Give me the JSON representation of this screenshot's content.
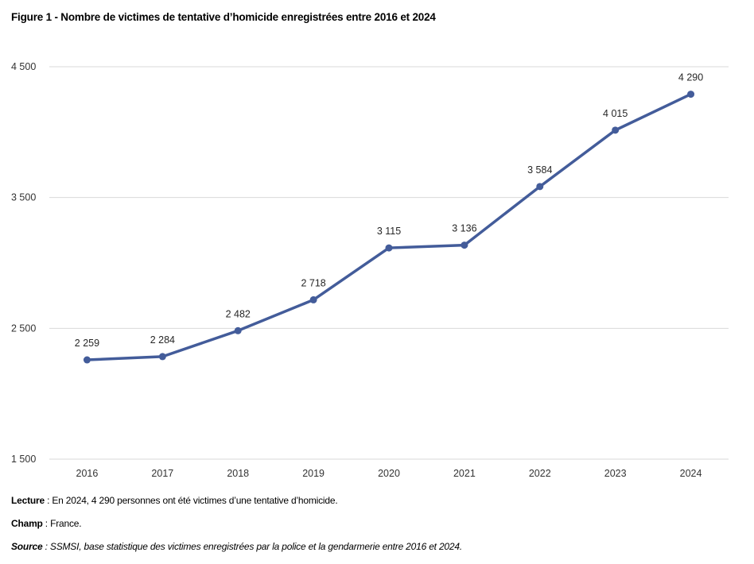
{
  "figure": {
    "title": "Figure 1 - Nombre de victimes de tentative d’homicide enregistrées entre 2016 et 2024"
  },
  "chart_data": {
    "type": "line",
    "title": "Figure 1 - Nombre de victimes de tentative d’homicide enregistrées entre 2016 et 2024",
    "categories": [
      "2016",
      "2017",
      "2018",
      "2019",
      "2020",
      "2021",
      "2022",
      "2023",
      "2024"
    ],
    "series": [
      {
        "values": [
          2259,
          2284,
          2482,
          2718,
          3115,
          3136,
          3584,
          4015,
          4290
        ],
        "color": "#435C9A"
      }
    ],
    "data_labels": [
      "2 259",
      "2 284",
      "2 482",
      "2 718",
      "3 115",
      "3 136",
      "3 584",
      "4 015",
      "4 290"
    ],
    "ylim": [
      1500,
      4500
    ],
    "yticks": [
      1500,
      2500,
      3500,
      4500
    ],
    "ytick_labels": [
      "1 500",
      "2 500",
      "3 500",
      "4 500"
    ],
    "grid": true,
    "legend": "none",
    "xlabel": "",
    "ylabel": ""
  },
  "notes": {
    "lecture_label": "Lecture",
    "lecture_text": " : En 2024, 4 290 personnes ont été victimes d’une tentative d’homicide.",
    "champ_label": "Champ",
    "champ_text": " : France.",
    "source_label": "Source",
    "source_text": " : SSMSI, base statistique des victimes enregistrées par la police et la gendarmerie entre 2016 et 2024."
  }
}
